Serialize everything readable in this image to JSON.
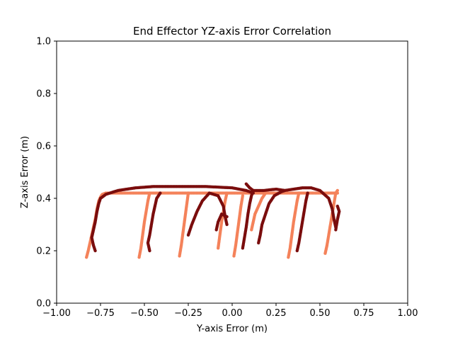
{
  "chart_data": {
    "type": "scatter",
    "title": "End Effector YZ-axis Error Correlation",
    "xlabel": "Y-axis Error (m)",
    "ylabel": "Z-axis Error (m)",
    "xlim": [
      -1.0,
      1.0
    ],
    "ylim": [
      0.0,
      1.0
    ],
    "xticks": [
      -1.0,
      -0.75,
      -0.5,
      -0.25,
      0.0,
      0.25,
      0.5,
      0.75,
      1.0
    ],
    "xtick_labels": [
      "−1.00",
      "−0.75",
      "−0.50",
      "−0.25",
      "0.00",
      "0.25",
      "0.50",
      "0.75",
      "1.00"
    ],
    "yticks": [
      0.0,
      0.2,
      0.4,
      0.6,
      0.8,
      1.0
    ],
    "ytick_labels": [
      "0.0",
      "0.2",
      "0.4",
      "0.6",
      "0.8",
      "1.0"
    ],
    "grid": false,
    "colors": {
      "series_a": "#f4825a",
      "series_b": "#7a0d0d"
    },
    "series": [
      {
        "color": "#f4825a",
        "marker_size": 2.2,
        "polylines": [
          [
            [
              -0.83,
              0.175
            ],
            [
              -0.82,
              0.2
            ],
            [
              -0.8,
              0.26
            ],
            [
              -0.78,
              0.32
            ],
            [
              -0.77,
              0.36
            ],
            [
              -0.76,
              0.39
            ],
            [
              -0.75,
              0.405
            ],
            [
              -0.74,
              0.415
            ],
            [
              -0.72,
              0.42
            ],
            [
              -0.5,
              0.42
            ],
            [
              -0.3,
              0.42
            ],
            [
              -0.1,
              0.42
            ],
            [
              0.1,
              0.42
            ],
            [
              0.3,
              0.42
            ],
            [
              0.5,
              0.42
            ],
            [
              0.6,
              0.42
            ]
          ],
          [
            [
              -0.53,
              0.175
            ],
            [
              -0.52,
              0.21
            ],
            [
              -0.51,
              0.26
            ],
            [
              -0.5,
              0.31
            ],
            [
              -0.49,
              0.35
            ],
            [
              -0.48,
              0.39
            ],
            [
              -0.47,
              0.42
            ]
          ],
          [
            [
              -0.3,
              0.18
            ],
            [
              -0.29,
              0.22
            ],
            [
              -0.28,
              0.27
            ],
            [
              -0.27,
              0.32
            ],
            [
              -0.26,
              0.37
            ],
            [
              -0.25,
              0.42
            ]
          ],
          [
            [
              -0.08,
              0.21
            ],
            [
              -0.07,
              0.26
            ],
            [
              -0.06,
              0.31
            ],
            [
              -0.05,
              0.35
            ],
            [
              -0.04,
              0.39
            ],
            [
              -0.03,
              0.42
            ]
          ],
          [
            [
              0.01,
              0.18
            ],
            [
              0.02,
              0.22
            ],
            [
              0.03,
              0.27
            ],
            [
              0.04,
              0.32
            ],
            [
              0.05,
              0.37
            ],
            [
              0.06,
              0.41
            ]
          ],
          [
            [
              0.11,
              0.28
            ],
            [
              0.12,
              0.31
            ],
            [
              0.13,
              0.34
            ],
            [
              0.15,
              0.37
            ],
            [
              0.17,
              0.4
            ],
            [
              0.19,
              0.42
            ]
          ],
          [
            [
              0.32,
              0.175
            ],
            [
              0.33,
              0.21
            ],
            [
              0.34,
              0.26
            ],
            [
              0.35,
              0.31
            ],
            [
              0.36,
              0.35
            ],
            [
              0.37,
              0.39
            ],
            [
              0.38,
              0.42
            ]
          ],
          [
            [
              0.53,
              0.19
            ],
            [
              0.54,
              0.22
            ],
            [
              0.55,
              0.26
            ],
            [
              0.56,
              0.3
            ],
            [
              0.57,
              0.34
            ],
            [
              0.58,
              0.38
            ],
            [
              0.59,
              0.42
            ],
            [
              0.6,
              0.43
            ]
          ]
        ]
      },
      {
        "color": "#7a0d0d",
        "marker_size": 2.2,
        "polylines": [
          [
            [
              -0.78,
              0.2
            ],
            [
              -0.79,
              0.22
            ],
            [
              -0.8,
              0.25
            ],
            [
              -0.79,
              0.28
            ],
            [
              -0.78,
              0.31
            ],
            [
              -0.77,
              0.35
            ],
            [
              -0.76,
              0.38
            ],
            [
              -0.75,
              0.4
            ],
            [
              -0.72,
              0.415
            ],
            [
              -0.65,
              0.43
            ],
            [
              -0.55,
              0.44
            ],
            [
              -0.45,
              0.445
            ],
            [
              -0.3,
              0.445
            ],
            [
              -0.15,
              0.445
            ],
            [
              0.0,
              0.44
            ],
            [
              0.08,
              0.43
            ],
            [
              0.12,
              0.42
            ]
          ],
          [
            [
              -0.47,
              0.2
            ],
            [
              -0.48,
              0.23
            ],
            [
              -0.47,
              0.26
            ],
            [
              -0.46,
              0.3
            ],
            [
              -0.45,
              0.34
            ],
            [
              -0.44,
              0.37
            ],
            [
              -0.43,
              0.4
            ],
            [
              -0.41,
              0.42
            ]
          ],
          [
            [
              -0.25,
              0.26
            ],
            [
              -0.23,
              0.3
            ],
            [
              -0.2,
              0.35
            ],
            [
              -0.17,
              0.39
            ],
            [
              -0.13,
              0.42
            ],
            [
              -0.08,
              0.41
            ],
            [
              -0.05,
              0.37
            ],
            [
              -0.04,
              0.33
            ],
            [
              -0.03,
              0.3
            ]
          ],
          [
            [
              -0.09,
              0.28
            ],
            [
              -0.08,
              0.31
            ],
            [
              -0.06,
              0.34
            ],
            [
              -0.03,
              0.33
            ]
          ],
          [
            [
              0.06,
              0.21
            ],
            [
              0.07,
              0.25
            ],
            [
              0.08,
              0.29
            ],
            [
              0.09,
              0.34
            ],
            [
              0.1,
              0.38
            ],
            [
              0.11,
              0.41
            ],
            [
              0.12,
              0.43
            ]
          ],
          [
            [
              0.15,
              0.23
            ],
            [
              0.16,
              0.26
            ],
            [
              0.17,
              0.3
            ],
            [
              0.19,
              0.34
            ],
            [
              0.21,
              0.38
            ],
            [
              0.24,
              0.41
            ],
            [
              0.28,
              0.425
            ],
            [
              0.3,
              0.43
            ]
          ],
          [
            [
              0.37,
              0.2
            ],
            [
              0.38,
              0.23
            ],
            [
              0.39,
              0.27
            ],
            [
              0.4,
              0.31
            ],
            [
              0.41,
              0.35
            ],
            [
              0.42,
              0.39
            ],
            [
              0.43,
              0.42
            ]
          ],
          [
            [
              0.08,
              0.455
            ],
            [
              0.1,
              0.44
            ],
            [
              0.12,
              0.43
            ],
            [
              0.18,
              0.43
            ],
            [
              0.25,
              0.435
            ],
            [
              0.3,
              0.43
            ],
            [
              0.4,
              0.44
            ],
            [
              0.45,
              0.44
            ],
            [
              0.5,
              0.43
            ],
            [
              0.55,
              0.4
            ],
            [
              0.57,
              0.36
            ],
            [
              0.58,
              0.32
            ],
            [
              0.59,
              0.29
            ]
          ],
          [
            [
              0.59,
              0.28
            ],
            [
              0.6,
              0.32
            ],
            [
              0.61,
              0.35
            ],
            [
              0.6,
              0.37
            ]
          ]
        ]
      }
    ]
  }
}
